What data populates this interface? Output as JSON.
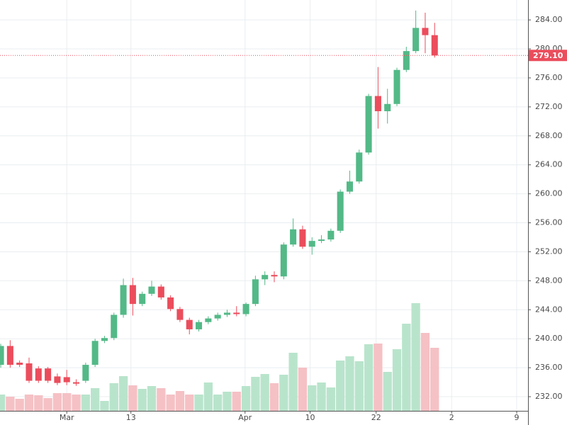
{
  "chart_data": {
    "type": "candlestick",
    "open": [
      236.4,
      239.0,
      236.7,
      236.6,
      235.9,
      235.9,
      234.8,
      234.7,
      234.0,
      234.2,
      236.4,
      239.7,
      240.1,
      243.3,
      247.4,
      244.8,
      246.2,
      247.2,
      245.7,
      244.1,
      242.6,
      241.3,
      242.3,
      242.8,
      243.3,
      243.6,
      243.4,
      244.8,
      248.2,
      248.8,
      248.6,
      253.0,
      255.1,
      252.7,
      253.5,
      253.7,
      254.9,
      260.3,
      261.7,
      265.7,
      273.5,
      271.4,
      272.4,
      277.1,
      279.7,
      282.9,
      281.9
    ],
    "close": [
      239.0,
      236.4,
      236.4,
      234.2,
      234.2,
      234.2,
      233.9,
      234.0,
      233.8,
      236.4,
      239.7,
      240.1,
      243.3,
      247.4,
      244.8,
      246.2,
      247.2,
      245.7,
      244.1,
      242.6,
      241.3,
      242.3,
      242.8,
      243.3,
      243.6,
      243.4,
      244.8,
      248.2,
      248.8,
      248.6,
      253.0,
      255.1,
      252.7,
      253.5,
      253.7,
      254.9,
      260.3,
      261.7,
      265.7,
      273.5,
      271.4,
      272.4,
      277.1,
      279.7,
      282.9,
      281.9,
      279.1
    ],
    "high": [
      239.3,
      239.8,
      237.0,
      237.4,
      236.2,
      236.1,
      235.2,
      235.7,
      234.4,
      236.7,
      240.0,
      240.4,
      243.6,
      248.3,
      248.4,
      246.5,
      248.0,
      247.5,
      246.0,
      244.4,
      242.9,
      242.6,
      243.1,
      243.6,
      244.0,
      244.5,
      245.0,
      248.7,
      249.3,
      249.3,
      253.3,
      256.6,
      255.6,
      254.0,
      254.3,
      255.2,
      260.6,
      263.2,
      266.1,
      273.8,
      277.5,
      274.5,
      277.4,
      280.3,
      285.3,
      285.0,
      283.6
    ],
    "low": [
      236.0,
      236.0,
      236.1,
      233.9,
      233.9,
      233.9,
      233.6,
      233.6,
      233.5,
      233.9,
      236.1,
      239.4,
      239.8,
      242.9,
      243.2,
      244.5,
      245.9,
      245.4,
      243.8,
      242.3,
      240.6,
      241.0,
      242.0,
      242.5,
      243.0,
      243.1,
      243.1,
      244.5,
      247.4,
      247.8,
      248.2,
      252.7,
      252.4,
      251.6,
      253.2,
      253.4,
      254.6,
      260.0,
      261.4,
      265.4,
      269.0,
      269.7,
      272.1,
      276.8,
      279.4,
      279.4,
      278.8
    ],
    "volume": [
      23,
      20,
      17,
      23,
      22,
      18,
      25,
      25,
      23,
      23,
      32,
      14,
      39,
      49,
      36,
      31,
      35,
      32,
      23,
      28,
      23,
      23,
      40,
      23,
      27,
      27,
      35,
      48,
      52,
      39,
      51,
      82,
      61,
      36,
      40,
      33,
      71,
      77,
      70,
      94,
      95,
      55,
      87,
      123,
      152,
      110,
      89
    ],
    "up_color": "#53b987",
    "down_color": "#eb4d5c",
    "up_volume_color": "#b9e4cc",
    "down_volume_color": "#f5c1c5",
    "last_price": {
      "value": 279.1,
      "label": "279.10"
    },
    "last_price_color": "#eb4d5c",
    "xlim": [
      -0.08,
      55.9
    ],
    "xticks": [
      {
        "value": 7,
        "label": "Mar"
      },
      {
        "value": 13.8,
        "label": "13"
      },
      {
        "value": 25.9,
        "label": "Apr"
      },
      {
        "value": 32.8,
        "label": "10"
      },
      {
        "value": 39.8,
        "label": "22"
      },
      {
        "value": 47.8,
        "label": "2"
      },
      {
        "value": 54.7,
        "label": "9"
      }
    ],
    "ylim": [
      230.05,
      286.75
    ],
    "yticks": [
      {
        "value": 232,
        "label": "232.00"
      },
      {
        "value": 236,
        "label": "236.00"
      },
      {
        "value": 240,
        "label": "240.00"
      },
      {
        "value": 244,
        "label": "244.00"
      },
      {
        "value": 248,
        "label": "248.00"
      },
      {
        "value": 252,
        "label": "252.00"
      },
      {
        "value": 256,
        "label": "256.00"
      },
      {
        "value": 260,
        "label": "260.00"
      },
      {
        "value": 264,
        "label": "264.00"
      },
      {
        "value": 268,
        "label": "268.00"
      },
      {
        "value": 272,
        "label": "272.00"
      },
      {
        "value": 276,
        "label": "276.00"
      },
      {
        "value": 280,
        "label": "280.00"
      },
      {
        "value": 284,
        "label": "284.00"
      }
    ],
    "volume_lim": [
      0,
      580
    ],
    "grid": true
  }
}
